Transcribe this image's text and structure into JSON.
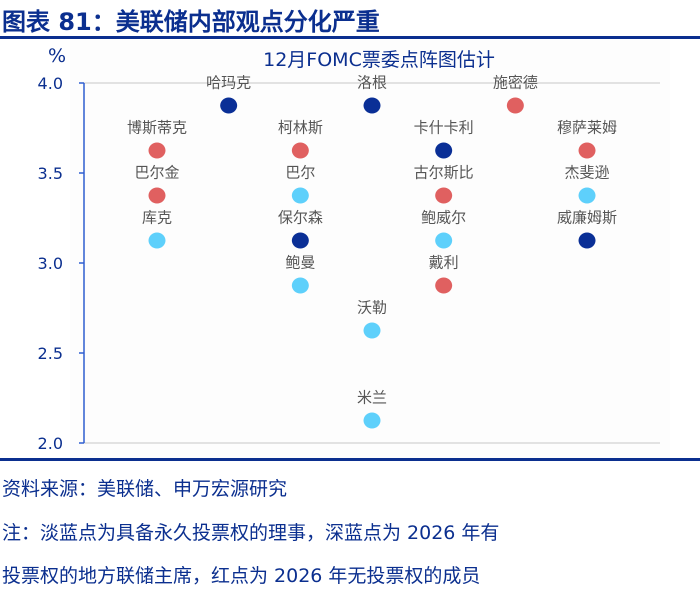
{
  "figure_title": "图表 81：美联储内部观点分化严重",
  "source": "资料来源：美联储、申万宏源研究",
  "note_line1": "注：淡蓝点为具备永久投票权的理事，深蓝点为 2026 年有",
  "note_line2": "投票权的地方联储主席，红点为 2026 年无投票权的成员",
  "colors": {
    "light_blue": "#5ed0fb",
    "dark_blue": "#0a2f96",
    "red": "#e06060",
    "axis": "#2f5fd0",
    "text": "#0b2f8f"
  },
  "chart_data": {
    "type": "scatter",
    "title": "12月FOMC票委点阵图估计",
    "ylabel": "%",
    "ylim": [
      2.0,
      4.0
    ],
    "yticks": [
      "4.0",
      "3.5",
      "3.0",
      "2.5",
      "2.0"
    ],
    "grid": false,
    "points": [
      {
        "name": "哈玛克",
        "col": 2,
        "y": 3.875,
        "type": "dark_blue"
      },
      {
        "name": "洛根",
        "col": 4,
        "y": 3.875,
        "type": "dark_blue"
      },
      {
        "name": "施密德",
        "col": 6,
        "y": 3.875,
        "type": "red"
      },
      {
        "name": "博斯蒂克",
        "col": 1,
        "y": 3.625,
        "type": "red"
      },
      {
        "name": "柯林斯",
        "col": 3,
        "y": 3.625,
        "type": "red"
      },
      {
        "name": "卡什卡利",
        "col": 5,
        "y": 3.625,
        "type": "dark_blue"
      },
      {
        "name": "穆萨莱姆",
        "col": 7,
        "y": 3.625,
        "type": "red"
      },
      {
        "name": "巴尔金",
        "col": 1,
        "y": 3.375,
        "type": "red"
      },
      {
        "name": "巴尔",
        "col": 3,
        "y": 3.375,
        "type": "light_blue"
      },
      {
        "name": "古尔斯比",
        "col": 5,
        "y": 3.375,
        "type": "red"
      },
      {
        "name": "杰斐逊",
        "col": 7,
        "y": 3.375,
        "type": "light_blue"
      },
      {
        "name": "库克",
        "col": 1,
        "y": 3.125,
        "type": "light_blue"
      },
      {
        "name": "保尔森",
        "col": 3,
        "y": 3.125,
        "type": "dark_blue"
      },
      {
        "name": "鲍威尔",
        "col": 5,
        "y": 3.125,
        "type": "light_blue"
      },
      {
        "name": "威廉姆斯",
        "col": 7,
        "y": 3.125,
        "type": "dark_blue"
      },
      {
        "name": "鲍曼",
        "col": 3,
        "y": 2.875,
        "type": "light_blue"
      },
      {
        "name": "戴利",
        "col": 5,
        "y": 2.875,
        "type": "red"
      },
      {
        "name": "沃勒",
        "col": 4,
        "y": 2.625,
        "type": "light_blue"
      },
      {
        "name": "米兰",
        "col": 4,
        "y": 2.125,
        "type": "light_blue"
      }
    ]
  }
}
